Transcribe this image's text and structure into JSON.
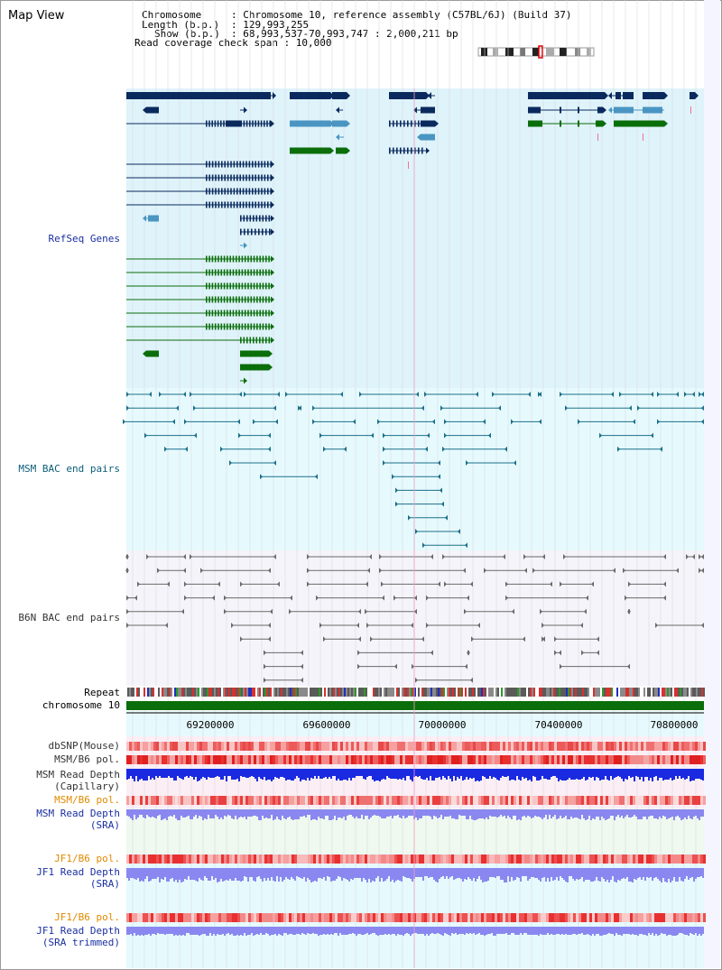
{
  "header": {
    "title": "Map View",
    "chromosome_key": "Chromosome",
    "chromosome_value": ": Chromosome 10, reference assembly (C57BL/6J) (Build 37)",
    "length_key": "Length (b.p.)",
    "length_value": ": 129,993,255",
    "show_key": "Show (b.p.)",
    "show_value": ": 68,993,537-70,993,747 : 2,000,211 bp",
    "coverage_line": "Read coverage check span : 10,000"
  },
  "tracks": {
    "refseq": "RefSeq Genes",
    "msm_bac": "MSM BAC end pairs",
    "b6n_bac": "B6N BAC end pairs",
    "repeat": "Repeat",
    "chromosome": "chromosome 10",
    "dbsnp": "dbSNP(Mouse)",
    "msm_b6_pol_1": "MSM/B6 pol.",
    "msm_read_depth_cap_1": "MSM Read Depth",
    "msm_read_depth_cap_2": "(Capillary)",
    "msm_b6_pol_2": "MSM/B6 pol.",
    "msm_read_depth_sra_1": "MSM Read Depth",
    "msm_read_depth_sra_2": "(SRA)",
    "jf1_b6_pol_1": "JF1/B6 pol.",
    "jf1_read_depth_sra_1": "JF1 Read Depth",
    "jf1_read_depth_sra_2": "(SRA)",
    "jf1_b6_pol_2": "JF1/B6 pol.",
    "jf1_read_depth_trim_1": "JF1 Read Depth",
    "jf1_read_depth_trim_2": "(SRA trimmed)"
  },
  "axis": {
    "ticks": [
      "69200000",
      "69600000",
      "70000000",
      "70400000",
      "70800000"
    ]
  },
  "colors": {
    "gene_navy": "#0a2a5e",
    "gene_steel": "#4a95c2",
    "gene_green": "#0a6e0a",
    "refseq_bg": "#dff3fa",
    "msm_bg": "#e6fafd",
    "b6n_bg": "#f4f4fa",
    "msm_pair": "#1a6f8a",
    "b6n_pair": "#6a6a6a",
    "snp_red": "#e83030",
    "depth_blue": "#1a2ae0",
    "depth_lavender": "#8a88f0",
    "chromosome_green": "#0a6e0a"
  }
}
